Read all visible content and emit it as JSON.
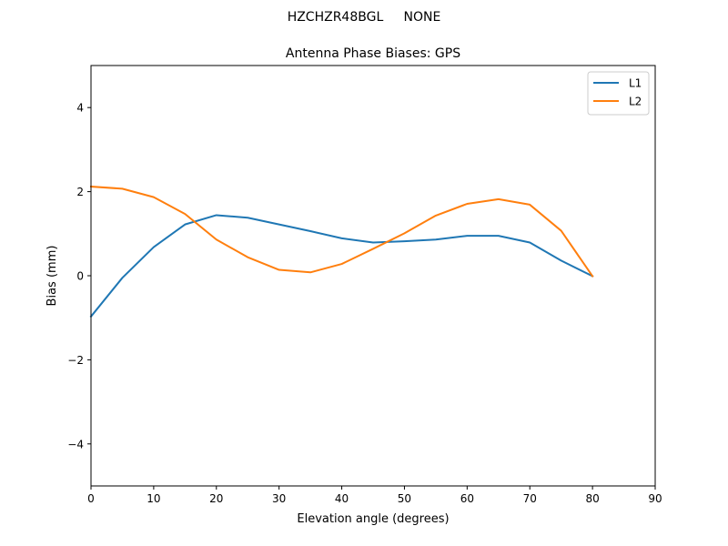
{
  "figure": {
    "suptitle": "HZCHZR48BGL     NONE"
  },
  "chart_data": {
    "type": "line",
    "title": "Antenna Phase Biases: GPS",
    "xlabel": "Elevation angle (degrees)",
    "ylabel": "Bias (mm)",
    "xlim": [
      0,
      90
    ],
    "ylim": [
      -5,
      5
    ],
    "x_ticks": [
      0,
      10,
      20,
      30,
      40,
      50,
      60,
      70,
      80,
      90
    ],
    "y_ticks": [
      -4,
      -2,
      0,
      2,
      4
    ],
    "x_tick_labels": [
      "0",
      "10",
      "20",
      "30",
      "40",
      "50",
      "60",
      "70",
      "80",
      "90"
    ],
    "y_tick_labels": [
      "−4",
      "−2",
      "0",
      "2",
      "4"
    ],
    "grid": false,
    "legend_position": "top-right",
    "x": [
      0,
      5,
      10,
      15,
      20,
      25,
      30,
      35,
      40,
      45,
      50,
      55,
      60,
      65,
      70,
      75,
      80
    ],
    "series": [
      {
        "name": "L1",
        "color": "#1f77b4",
        "values": [
          -0.97,
          -0.05,
          0.68,
          1.22,
          1.44,
          1.38,
          1.22,
          1.06,
          0.89,
          0.79,
          0.82,
          0.86,
          0.95,
          0.95,
          0.79,
          0.36,
          -0.01
        ]
      },
      {
        "name": "L2",
        "color": "#ff7f0e",
        "values": [
          2.12,
          2.07,
          1.87,
          1.47,
          0.86,
          0.44,
          0.14,
          0.08,
          0.28,
          0.64,
          1.01,
          1.43,
          1.71,
          1.82,
          1.69,
          1.07,
          -0.01
        ]
      }
    ]
  }
}
